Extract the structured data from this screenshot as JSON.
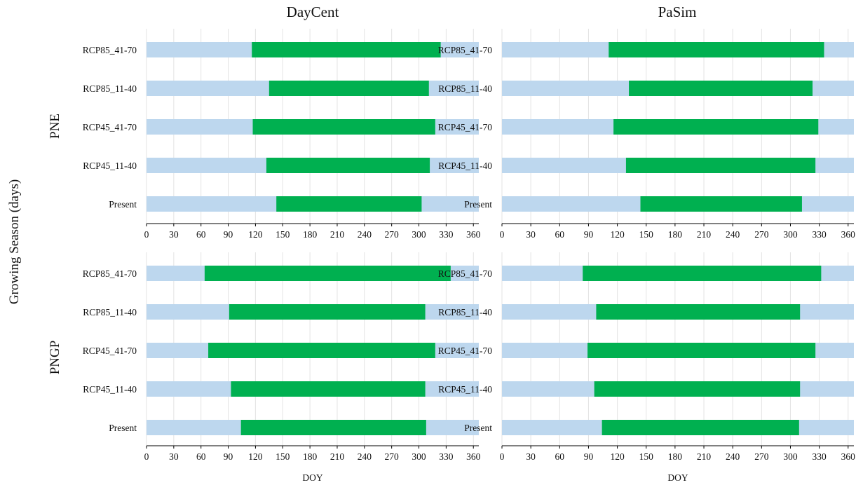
{
  "figure": {
    "ylabel": "Growing Season (days)",
    "column_titles": [
      "DayCent",
      "PaSim"
    ],
    "row_titles": [
      "PNE",
      "PNGP"
    ]
  },
  "colors": {
    "background_bar": "#bdd7ee",
    "growing_season": "#00b050"
  },
  "chart_data": [
    {
      "type": "bar",
      "panel": "PNE-DayCent",
      "title": "DayCent",
      "row_label": "PNE",
      "xlabel": "",
      "categories": [
        "Present",
        "RCP45_11-40",
        "RCP45_41-70",
        "RCP85_11-40",
        "RCP85_41-70"
      ],
      "series": [
        {
          "values": [
            [
              143,
              303
            ],
            [
              132,
              312
            ],
            [
              117,
              318
            ],
            [
              135,
              311
            ],
            [
              116,
              324
            ]
          ]
        }
      ],
      "background_range": [
        0,
        366
      ],
      "xlim": [
        0,
        366
      ],
      "xticks": [
        0,
        30,
        60,
        90,
        120,
        150,
        180,
        210,
        240,
        270,
        300,
        330,
        360
      ]
    },
    {
      "type": "bar",
      "panel": "PNE-PaSim",
      "title": "PaSim",
      "row_label": "PNE",
      "xlabel": "",
      "categories": [
        "Present",
        "RCP45_11-40",
        "RCP45_41-70",
        "RCP85_11-40",
        "RCP85_41-70"
      ],
      "series": [
        {
          "values": [
            [
              144,
              312
            ],
            [
              129,
              326
            ],
            [
              116,
              329
            ],
            [
              132,
              323
            ],
            [
              111,
              335
            ]
          ]
        }
      ],
      "background_range": [
        0,
        366
      ],
      "xlim": [
        0,
        366
      ],
      "xticks": [
        0,
        30,
        60,
        90,
        120,
        150,
        180,
        210,
        240,
        270,
        300,
        330,
        360
      ]
    },
    {
      "type": "bar",
      "panel": "PNGP-DayCent",
      "title": "",
      "row_label": "PNGP",
      "xlabel": "DOY",
      "categories": [
        "Present",
        "RCP45_11-40",
        "RCP45_41-70",
        "RCP85_11-40",
        "RCP85_41-70"
      ],
      "series": [
        {
          "values": [
            [
              104,
              308
            ],
            [
              93,
              307
            ],
            [
              68,
              318
            ],
            [
              91,
              307
            ],
            [
              64,
              335
            ]
          ]
        }
      ],
      "background_range": [
        0,
        366
      ],
      "xlim": [
        0,
        366
      ],
      "xticks": [
        0,
        30,
        60,
        90,
        120,
        150,
        180,
        210,
        240,
        270,
        300,
        330,
        360
      ]
    },
    {
      "type": "bar",
      "panel": "PNGP-PaSim",
      "title": "",
      "row_label": "PNGP",
      "xlabel": "DOY",
      "categories": [
        "Present",
        "RCP45_11-40",
        "RCP45_41-70",
        "RCP85_11-40",
        "RCP85_41-70"
      ],
      "series": [
        {
          "values": [
            [
              104,
              309
            ],
            [
              96,
              310
            ],
            [
              89,
              326
            ],
            [
              98,
              310
            ],
            [
              84,
              332
            ]
          ]
        }
      ],
      "background_range": [
        0,
        366
      ],
      "xlim": [
        0,
        366
      ],
      "xticks": [
        0,
        30,
        60,
        90,
        120,
        150,
        180,
        210,
        240,
        270,
        300,
        330,
        360
      ]
    }
  ]
}
